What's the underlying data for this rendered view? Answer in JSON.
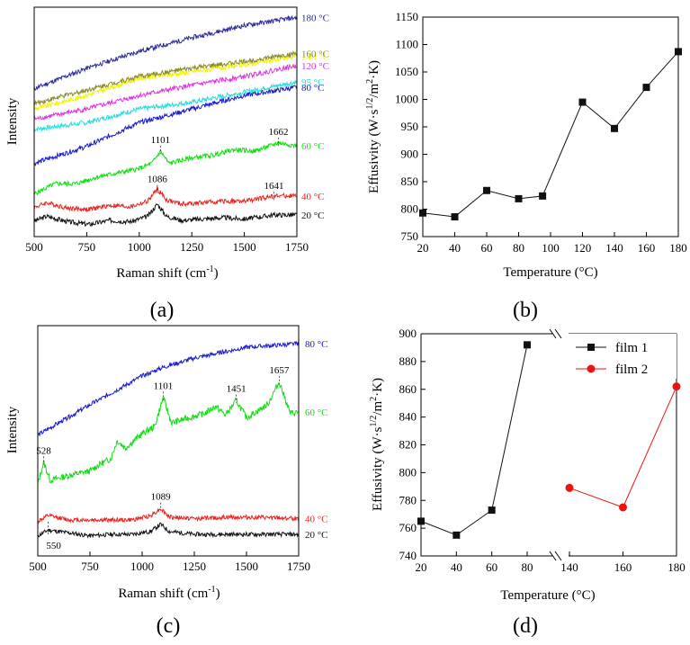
{
  "colors": {
    "black": "#111111",
    "red": "#e8231f",
    "green": "#11dd11",
    "blue": "#1a1acc",
    "cyan": "#22dddd",
    "magenta": "#e033e0",
    "yellow": "#f2f200",
    "olive": "#8a8a28",
    "navy": "#2a2a99",
    "film2": "#ee1111"
  },
  "chart_data": [
    {
      "id": "a",
      "type": "line",
      "panel_label": "(a)",
      "xlabel": "Raman shift (cm",
      "xlabel_sup": "-1",
      "xlabel_close": ")",
      "ylabel": "Intensity",
      "xlim": [
        500,
        1750
      ],
      "x_ticks": [
        "500",
        "750",
        "1000",
        "1250",
        "1500",
        "1750"
      ],
      "series": [
        {
          "name": "20 °C",
          "color": "black",
          "x": [
            500,
            560,
            660,
            760,
            860,
            960,
            1040,
            1086,
            1130,
            1200,
            1300,
            1400,
            1500,
            1641,
            1750
          ],
          "y": [
            15,
            22,
            14,
            10,
            16,
            14,
            22,
            40,
            22,
            16,
            18,
            20,
            18,
            24,
            24
          ]
        },
        {
          "name": "40 °C",
          "color": "red",
          "x": [
            500,
            560,
            660,
            760,
            860,
            960,
            1040,
            1086,
            1130,
            1200,
            1300,
            1400,
            1500,
            1641,
            1750
          ],
          "y": [
            35,
            42,
            34,
            32,
            38,
            36,
            44,
            62,
            46,
            40,
            42,
            44,
            44,
            52,
            52
          ]
        },
        {
          "name": "60 °C",
          "color": "green",
          "x": [
            500,
            600,
            700,
            800,
            900,
            1000,
            1060,
            1101,
            1140,
            1250,
            1350,
            1450,
            1550,
            1662,
            1750
          ],
          "y": [
            55,
            70,
            70,
            80,
            86,
            92,
            100,
            118,
            100,
            108,
            112,
            120,
            118,
            130,
            126
          ]
        },
        {
          "name": "80 °C",
          "color": "blue",
          "x": [
            500,
            750,
            1000,
            1250,
            1500,
            1750
          ],
          "y": [
            100,
            125,
            160,
            180,
            200,
            212
          ]
        },
        {
          "name": "95 °C",
          "color": "cyan",
          "x": [
            500,
            750,
            1000,
            1250,
            1500,
            1750
          ],
          "y": [
            150,
            160,
            180,
            190,
            205,
            220
          ]
        },
        {
          "name": "120 °C",
          "color": "magenta",
          "x": [
            500,
            750,
            1000,
            1250,
            1500,
            1750
          ],
          "y": [
            165,
            180,
            200,
            215,
            228,
            244
          ]
        },
        {
          "name": "140 °C",
          "color": "yellow",
          "x": [
            500,
            750,
            1000,
            1250,
            1500,
            1750
          ],
          "y": [
            180,
            200,
            225,
            235,
            245,
            258
          ]
        },
        {
          "name": "160 °C",
          "color": "olive",
          "x": [
            500,
            750,
            1000,
            1250,
            1500,
            1750
          ],
          "y": [
            188,
            208,
            228,
            240,
            250,
            262
          ]
        },
        {
          "name": "180 °C",
          "color": "navy",
          "x": [
            500,
            750,
            1000,
            1250,
            1500,
            1750
          ],
          "y": [
            210,
            240,
            265,
            285,
            303,
            315
          ]
        }
      ],
      "annotations": [
        {
          "text": "1101",
          "x": 1101,
          "y": 130
        },
        {
          "text": "1662",
          "x": 1662,
          "y": 142
        },
        {
          "text": "1086",
          "x": 1086,
          "y": 72
        },
        {
          "text": "1641",
          "x": 1641,
          "y": 62
        }
      ]
    },
    {
      "id": "b",
      "type": "line",
      "panel_label": "(b)",
      "xlabel": "Temperature (°C)",
      "ylabel": "Effusivity (W·s",
      "ylabel_sup": "1/2",
      "ylabel_mid": "/m",
      "ylabel_sup2": "2",
      "ylabel_end": "·K)",
      "xlim": [
        20,
        180
      ],
      "ylim": [
        750,
        1150
      ],
      "x_ticks": [
        "20",
        "40",
        "60",
        "80",
        "100",
        "120",
        "140",
        "160",
        "180"
      ],
      "y_ticks": [
        "750",
        "800",
        "850",
        "900",
        "950",
        "1000",
        "1050",
        "1100",
        "1150"
      ],
      "x": [
        20,
        40,
        60,
        80,
        95,
        120,
        140,
        160,
        180
      ],
      "y": [
        793,
        786,
        834,
        819,
        824,
        995,
        947,
        1022,
        1087
      ]
    },
    {
      "id": "c",
      "type": "line",
      "panel_label": "(c)",
      "xlabel": "Raman shift (cm",
      "xlabel_sup": "-1",
      "xlabel_close": ")",
      "ylabel": "Intensity",
      "xlim": [
        500,
        1750
      ],
      "x_ticks": [
        "500",
        "750",
        "1000",
        "1250",
        "1500",
        "1750"
      ],
      "series": [
        {
          "name": "20 °C",
          "color": "black",
          "x": [
            500,
            550,
            650,
            750,
            850,
            950,
            1040,
            1089,
            1130,
            1250,
            1450,
            1750
          ],
          "y": [
            8,
            16,
            12,
            8,
            10,
            10,
            14,
            24,
            14,
            10,
            10,
            10
          ]
        },
        {
          "name": "40 °C",
          "color": "red",
          "x": [
            500,
            550,
            650,
            750,
            850,
            950,
            1040,
            1089,
            1130,
            1250,
            1450,
            1750
          ],
          "y": [
            28,
            36,
            30,
            30,
            30,
            30,
            36,
            46,
            34,
            32,
            34,
            32
          ]
        },
        {
          "name": "60 °C",
          "color": "green",
          "x": [
            500,
            528,
            560,
            650,
            750,
            800,
            850,
            880,
            920,
            1000,
            1060,
            1101,
            1140,
            1200,
            1300,
            1350,
            1400,
            1451,
            1500,
            1600,
            1657,
            1710,
            1750
          ],
          "y": [
            80,
            110,
            85,
            92,
            98,
            108,
            115,
            140,
            130,
            150,
            160,
            200,
            165,
            170,
            178,
            188,
            176,
            196,
            172,
            190,
            222,
            178,
            180
          ]
        },
        {
          "name": "80 °C",
          "color": "blue",
          "x": [
            500,
            750,
            1000,
            1100,
            1250,
            1500,
            1750
          ],
          "y": [
            148,
            190,
            230,
            242,
            255,
            270,
            275
          ]
        }
      ],
      "annotations": [
        {
          "text": "528",
          "x": 528,
          "y": 122
        },
        {
          "text": "1101",
          "x": 1101,
          "y": 212
        },
        {
          "text": "1451",
          "x": 1451,
          "y": 208
        },
        {
          "text": "1657",
          "x": 1657,
          "y": 234
        },
        {
          "text": "1089",
          "x": 1089,
          "y": 58
        },
        {
          "text": "550",
          "x": 550,
          "y": 0
        }
      ]
    },
    {
      "id": "d",
      "type": "line",
      "panel_label": "(d)",
      "xlabel": "Temperature (°C)",
      "ylabel": "Effusivity (W·s",
      "ylabel_sup": "1/2",
      "ylabel_mid": "/m",
      "ylabel_sup2": "2",
      "ylabel_end": "·K)",
      "ylim": [
        740,
        900
      ],
      "x_ticks": [
        "20",
        "40",
        "60",
        "80",
        "140",
        "160",
        "180"
      ],
      "y_ticks": [
        "740",
        "760",
        "780",
        "800",
        "820",
        "840",
        "860",
        "880",
        "900"
      ],
      "broken_axis": true,
      "series": [
        {
          "name": "film 1",
          "color": "black",
          "marker": "square",
          "x": [
            20,
            40,
            60,
            80
          ],
          "y": [
            765,
            755,
            773,
            892
          ]
        },
        {
          "name": "film 2",
          "color": "film2",
          "marker": "circle",
          "x": [
            140,
            160,
            180
          ],
          "y": [
            789,
            775,
            862
          ]
        }
      ]
    }
  ]
}
